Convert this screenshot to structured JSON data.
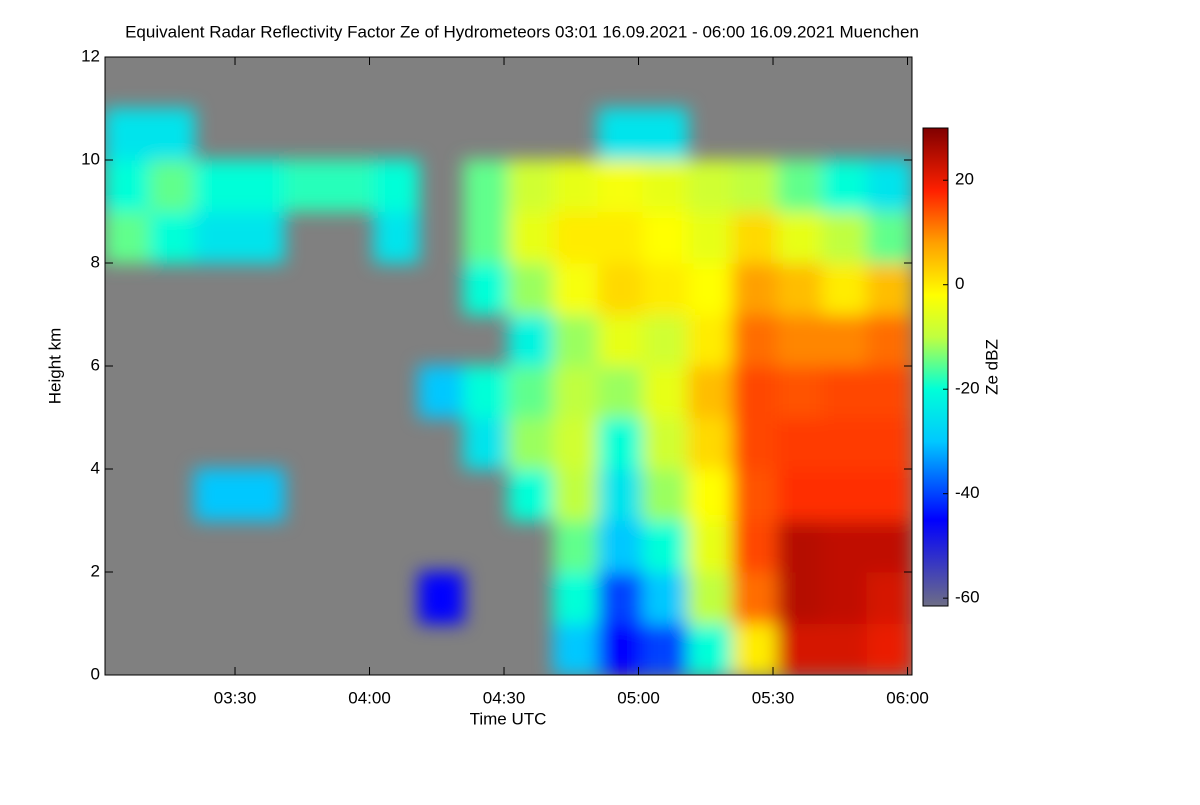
{
  "chart_data": {
    "type": "heatmap",
    "title": "Equivalent Radar Reflectivity Factor Ze of Hydrometeors   03:01 16.09.2021 - 06:00 16.09.2021 Muenchen",
    "x_label": "Time UTC",
    "y_label": "Height km",
    "colorbar_label": "Ze dBZ",
    "background": "#808080",
    "xlim": [
      181,
      361
    ],
    "xticks": [
      {
        "value": 210,
        "label": "03:30"
      },
      {
        "value": 240,
        "label": "04:00"
      },
      {
        "value": 270,
        "label": "04:30"
      },
      {
        "value": 300,
        "label": "05:00"
      },
      {
        "value": 330,
        "label": "05:30"
      },
      {
        "value": 360,
        "label": "06:00"
      }
    ],
    "ylim": [
      0,
      12
    ],
    "yticks": [
      0,
      2,
      4,
      6,
      8,
      10,
      12
    ],
    "clim": [
      -61.5,
      30
    ],
    "cticks": [
      20,
      0,
      -20,
      -40,
      -60
    ],
    "colormap": [
      [
        -61.5,
        "#6e6e86"
      ],
      [
        -45,
        "#0000ff"
      ],
      [
        -30,
        "#00c8ff"
      ],
      [
        -20,
        "#00ffd8"
      ],
      [
        -10,
        "#c0ff40"
      ],
      [
        -2,
        "#ffff00"
      ],
      [
        8,
        "#ffa000"
      ],
      [
        18,
        "#ff2000"
      ],
      [
        30,
        "#800000"
      ]
    ],
    "x": [
      186,
      196,
      206,
      216,
      226,
      236,
      246,
      256,
      266,
      276,
      286,
      296,
      306,
      316,
      326,
      336,
      346,
      356
    ],
    "y": [
      0.5,
      1.5,
      2.5,
      3.5,
      4.5,
      5.5,
      6.5,
      7.5,
      8.5,
      9.5,
      10.5,
      11.5
    ],
    "z": [
      [
        null,
        null,
        null,
        null,
        null,
        null,
        null,
        null,
        null,
        null,
        -30,
        -45,
        -40,
        -20,
        0,
        22,
        22,
        20
      ],
      [
        null,
        null,
        null,
        null,
        null,
        null,
        null,
        -45,
        null,
        null,
        -20,
        -40,
        -30,
        -10,
        12,
        25,
        24,
        22
      ],
      [
        null,
        null,
        null,
        null,
        null,
        null,
        null,
        null,
        null,
        null,
        -15,
        -30,
        -20,
        -5,
        15,
        25,
        24,
        24
      ],
      [
        null,
        null,
        -30,
        -30,
        null,
        null,
        null,
        null,
        null,
        -20,
        -10,
        -25,
        -12,
        -2,
        14,
        17,
        17,
        17
      ],
      [
        null,
        null,
        null,
        null,
        null,
        null,
        null,
        null,
        -25,
        -12,
        -8,
        -20,
        -8,
        2,
        15,
        16,
        16,
        16
      ],
      [
        null,
        null,
        null,
        null,
        null,
        null,
        null,
        -30,
        -20,
        -15,
        -10,
        -12,
        -5,
        5,
        15,
        14,
        15,
        15
      ],
      [
        null,
        null,
        null,
        null,
        null,
        null,
        null,
        null,
        null,
        -22,
        -12,
        -5,
        -8,
        0,
        12,
        10,
        10,
        12
      ],
      [
        null,
        null,
        null,
        null,
        null,
        null,
        null,
        null,
        -20,
        -12,
        -3,
        2,
        0,
        -2,
        8,
        5,
        0,
        5
      ],
      [
        -15,
        -20,
        -25,
        -25,
        null,
        null,
        -25,
        null,
        -15,
        -5,
        0,
        0,
        -2,
        -5,
        2,
        -5,
        -10,
        -15
      ],
      [
        -20,
        -15,
        -20,
        -20,
        -18,
        -18,
        -20,
        null,
        -15,
        -8,
        -5,
        -3,
        -5,
        -8,
        -10,
        -15,
        -20,
        -25
      ],
      [
        -25,
        -25,
        null,
        null,
        null,
        null,
        null,
        null,
        null,
        null,
        null,
        -25,
        -25,
        null,
        null,
        null,
        null,
        null
      ],
      [
        null,
        null,
        null,
        null,
        null,
        null,
        null,
        null,
        null,
        null,
        null,
        null,
        null,
        null,
        null,
        null,
        null,
        null
      ]
    ]
  }
}
